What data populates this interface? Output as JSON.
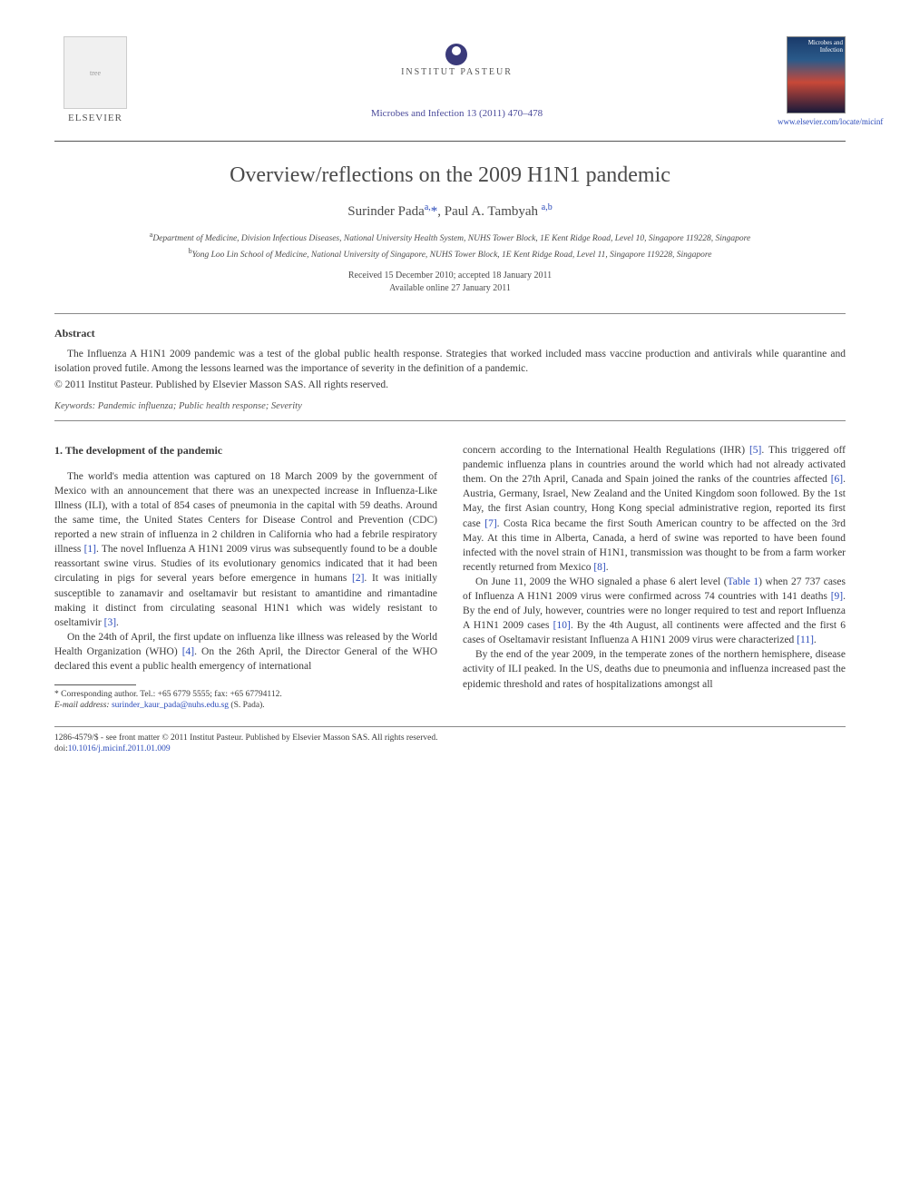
{
  "header": {
    "elsevier_label": "ELSEVIER",
    "pasteur_label": "INSTITUT PASTEUR",
    "journal_ref": "Microbes and Infection 13 (2011) 470–478",
    "cover_label": "Microbes and Infection",
    "locate_url": "www.elsevier.com/locate/micinf"
  },
  "title": "Overview/reflections on the 2009 H1N1 pandemic",
  "authors": {
    "a1_name": "Surinder Pada",
    "a1_sup": "a,",
    "a1_star": "*",
    "a2_name": ", Paul A. Tambyah",
    "a2_sup": "a,b"
  },
  "affiliations": {
    "a_sup": "a",
    "a_text": "Department of Medicine, Division Infectious Diseases, National University Health System, NUHS Tower Block, 1E Kent Ridge Road, Level 10, Singapore 119228, Singapore",
    "b_sup": "b",
    "b_text": "Yong Loo Lin School of Medicine, National University of Singapore, NUHS Tower Block, 1E Kent Ridge Road, Level 11, Singapore 119228, Singapore"
  },
  "dates": {
    "received": "Received 15 December 2010; accepted 18 January 2011",
    "available": "Available online 27 January 2011"
  },
  "abstract": {
    "heading": "Abstract",
    "text": "The Influenza A H1N1 2009 pandemic was a test of the global public health response. Strategies that worked included mass vaccine production and antivirals while quarantine and isolation proved futile. Among the lessons learned was the importance of severity in the definition of a pandemic.",
    "copyright": "© 2011 Institut Pasteur. Published by Elsevier Masson SAS. All rights reserved."
  },
  "keywords": {
    "label": "Keywords:",
    "text": " Pandemic influenza; Public health response; Severity"
  },
  "section1": {
    "heading": "1. The development of the pandemic",
    "p1a": "The world's media attention was captured on 18 March 2009 by the government of Mexico with an announcement that there was an unexpected increase in Influenza-Like Illness (ILI), with a total of 854 cases of pneumonia in the capital with 59 deaths. Around the same time, the United States Centers for Disease Control and Prevention (CDC) reported a new strain of influenza in 2 children in California who had a febrile respiratory illness ",
    "r1": "[1]",
    "p1b": ". The novel Influenza A H1N1 2009 virus was subsequently found to be a double reassortant swine virus. Studies of its evolutionary genomics indicated that it had been circulating in pigs for several years before emergence in humans ",
    "r2": "[2]",
    "p1c": ". It was initially susceptible to zanamavir and oseltamavir but resistant to amantidine and rimantadine making it distinct from circulating seasonal H1N1 which was widely resistant to oseltamivir ",
    "r3": "[3]",
    "p1d": ".",
    "p2a": "On the 24th of April, the first update on influenza like illness was released by the World Health Organization (WHO) ",
    "r4": "[4]",
    "p2b": ". On the 26th April, the Director General of the WHO declared this event a public health emergency of international",
    "p3a": "concern according to the International Health Regulations (IHR) ",
    "r5": "[5]",
    "p3b": ". This triggered off pandemic influenza plans in countries around the world which had not already activated them. On the 27th April, Canada and Spain joined the ranks of the countries affected ",
    "r6": "[6]",
    "p3c": ". Austria, Germany, Israel, New Zealand and the United Kingdom soon followed. By the 1st May, the first Asian country, Hong Kong special administrative region, reported its first case ",
    "r7": "[7]",
    "p3d": ". Costa Rica became the first South American country to be affected on the 3rd May. At this time in Alberta, Canada, a herd of swine was reported to have been found infected with the novel strain of H1N1, transmission was thought to be from a farm worker recently returned from Mexico ",
    "r8": "[8]",
    "p3e": ".",
    "p4a": "On June 11, 2009 the WHO signaled a phase 6 alert level (",
    "t1": "Table 1",
    "p4b": ") when 27 737 cases of Influenza A H1N1 2009 virus were confirmed across 74 countries with 141 deaths ",
    "r9": "[9]",
    "p4c": ". By the end of July, however, countries were no longer required to test and report Influenza A H1N1 2009 cases ",
    "r10": "[10]",
    "p4d": ". By the 4th August, all continents were affected and the first 6 cases of Oseltamavir resistant Influenza A H1N1 2009 virus were characterized ",
    "r11": "[11]",
    "p4e": ".",
    "p5": "By the end of the year 2009, in the temperate zones of the northern hemisphere, disease activity of ILI peaked. In the US, deaths due to pneumonia and influenza increased past the epidemic threshold and rates of hospitalizations amongst all"
  },
  "footnote": {
    "corr": "* Corresponding author. Tel.: +65 6779 5555; fax: +65 67794112.",
    "email_label": "E-mail address:",
    "email": "surinder_kaur_pada@nuhs.edu.sg",
    "email_suffix": " (S. Pada)."
  },
  "footer": {
    "line1": "1286-4579/$ - see front matter © 2011 Institut Pasteur. Published by Elsevier Masson SAS. All rights reserved.",
    "doi_label": "doi:",
    "doi": "10.1016/j.micinf.2011.01.009"
  },
  "colors": {
    "link": "#2a4aba",
    "text": "#3a3a3a",
    "rule": "#888888"
  }
}
